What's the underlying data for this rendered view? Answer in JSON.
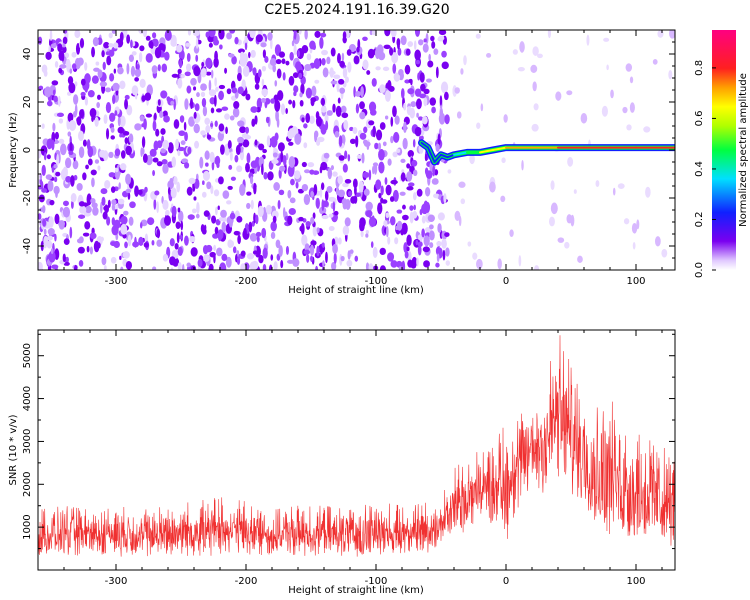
{
  "title": "C2E5.2024.191.16.39.G20",
  "colors": {
    "snr_line": "#f03030",
    "spectrogram_noise": "#7a00f0",
    "spectrogram_signal": "#ff2020"
  },
  "chart_data": [
    {
      "type": "heatmap",
      "xlabel": "Height of straight line (km)",
      "ylabel": "Frequency (Hz)",
      "xlim": [
        -360,
        130
      ],
      "ylim": [
        -50,
        50
      ],
      "xticks": [
        -300,
        -200,
        -100,
        0,
        100
      ],
      "yticks": [
        -40,
        -20,
        0,
        20,
        40
      ],
      "grid": false,
      "colorbar": {
        "label": "Normalized spectral amplitude",
        "range": [
          0,
          0.95
        ],
        "ticks": [
          0.0,
          0.2,
          0.4,
          0.6,
          0.8
        ],
        "colormap": "rainbow (violet-blue-cyan-green-yellow-orange-red-magenta)"
      },
      "signal_track": {
        "description": "narrow high-amplitude tone near 0-2 Hz",
        "height_km": [
          -65,
          -60,
          -55,
          -50,
          -45,
          -40,
          -30,
          -20,
          -10,
          0,
          20,
          40,
          60,
          80,
          100,
          130
        ],
        "frequency_hz": [
          3,
          1,
          -5,
          -2,
          -3,
          -2,
          -1,
          -1,
          0,
          1,
          1,
          1,
          1,
          1,
          1,
          1
        ],
        "amplitude": [
          0.3,
          0.3,
          0.25,
          0.2,
          0.3,
          0.4,
          0.5,
          0.6,
          0.6,
          0.7,
          0.75,
          0.8,
          0.8,
          0.8,
          0.8,
          0.8
        ]
      },
      "noise_region_km": [
        -360,
        -45
      ],
      "gap_region_km": [
        -45,
        -10
      ]
    },
    {
      "type": "line",
      "xlabel": "Height of straight line (km)",
      "ylabel": "SNR (10 * v/v)",
      "xlim": [
        -360,
        130
      ],
      "ylim": [
        0,
        5600
      ],
      "xticks": [
        -300,
        -200,
        -100,
        0,
        100
      ],
      "yticks": [
        1000,
        2000,
        3000,
        4000,
        5000
      ],
      "grid": false,
      "series": [
        {
          "color": "#f03030",
          "x": [
            -360,
            -340,
            -320,
            -300,
            -280,
            -260,
            -240,
            -220,
            -200,
            -180,
            -160,
            -140,
            -120,
            -100,
            -80,
            -60,
            -50,
            -40,
            -30,
            -20,
            -10,
            0,
            10,
            20,
            30,
            40,
            50,
            60,
            70,
            80,
            90,
            100,
            110,
            120,
            130
          ],
          "y_upper": [
            1400,
            1500,
            1400,
            1500,
            1400,
            1500,
            1600,
            1700,
            1600,
            1400,
            1500,
            1500,
            1400,
            1600,
            1500,
            1600,
            1700,
            2400,
            2600,
            2800,
            3000,
            3500,
            3600,
            4000,
            4600,
            5600,
            4800,
            4300,
            3800,
            4000,
            3600,
            3400,
            3200,
            2900,
            2600
          ],
          "y_lower": [
            300,
            300,
            300,
            300,
            300,
            300,
            300,
            300,
            300,
            300,
            300,
            300,
            300,
            300,
            300,
            400,
            500,
            700,
            900,
            1100,
            1000,
            600,
            1400,
            1800,
            1600,
            2000,
            1600,
            1400,
            900,
            600,
            500,
            500,
            600,
            500,
            500
          ]
        }
      ]
    }
  ]
}
